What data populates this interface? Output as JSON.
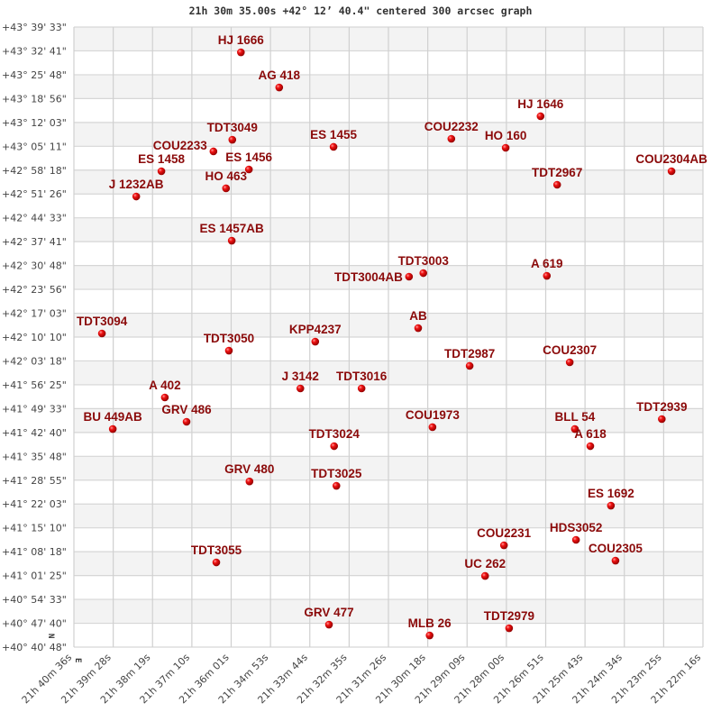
{
  "chart_data": {
    "type": "scatter",
    "title": "21h 30m 35.00s +42° 12’ 40.4\" centered 300 arcsec graph",
    "grid": true,
    "compass": {
      "north": "N",
      "east": "E"
    },
    "xlim": [
      "21h 40m 36s",
      "21h 22m 16s"
    ],
    "ylim": [
      "+40° 40' 48\"",
      "+43° 39' 33\""
    ],
    "x_ticks": [
      "21h 40m 36s",
      "21h 39m 28s",
      "21h 38m 19s",
      "21h 37m 10s",
      "21h 36m 01s",
      "21h 34m 53s",
      "21h 33m 44s",
      "21h 32m 35s",
      "21h 31m 26s",
      "21h 30m 18s",
      "21h 29m 09s",
      "21h 28m 00s",
      "21h 26m 51s",
      "21h 25m 43s",
      "21h 24m 34s",
      "21h 23m 25s",
      "21h 22m 16s"
    ],
    "y_ticks": [
      "+43° 39' 33\"",
      "+43° 32' 41\"",
      "+43° 25' 48\"",
      "+43° 18' 56\"",
      "+43° 12' 03\"",
      "+43° 05' 11\"",
      "+42° 58' 18\"",
      "+42° 51' 26\"",
      "+42° 44' 33\"",
      "+42° 37' 41\"",
      "+42° 30' 48\"",
      "+42° 23' 56\"",
      "+42° 17' 03\"",
      "+42° 10' 10\"",
      "+42° 03' 18\"",
      "+41° 56' 25\"",
      "+41° 49' 33\"",
      "+41° 42' 40\"",
      "+41° 35' 48\"",
      "+41° 28' 55\"",
      "+41° 22' 03\"",
      "+41° 15' 10\"",
      "+41° 08' 18\"",
      "+41° 01' 25\"",
      "+40° 54' 33\"",
      "+40° 47' 40\"",
      "+40° 40' 48\""
    ],
    "marker_color": "#dd0000",
    "label_color": "#8b0a0a",
    "points": [
      {
        "label": "HJ 1666",
        "ra": "21h 35m 44s",
        "dec": "+43° 32' 16\""
      },
      {
        "label": "AG  418",
        "ra": "21h 34m 37s",
        "dec": "+43° 22' 08\""
      },
      {
        "label": "TDT3049",
        "ra": "21h 35m 59s",
        "dec": "+43° 07' 04\""
      },
      {
        "label": "COU2233",
        "ra": "21h 36m 32s",
        "dec": "+43° 03' 42\""
      },
      {
        "label": "ES 1456",
        "ra": "21h 35m 30s",
        "dec": "+42° 58' 30\""
      },
      {
        "label": "ES 1458",
        "ra": "21h 38m 03s",
        "dec": "+42° 57' 59\""
      },
      {
        "label": "HO  463",
        "ra": "21h 36m 10s",
        "dec": "+42° 53' 03\""
      },
      {
        "label": "J  1232AB",
        "ra": "21h 38m 47s",
        "dec": "+42° 50' 42\""
      },
      {
        "label": "ES 1455",
        "ra": "21h 33m 02s",
        "dec": "+43° 05' 00\""
      },
      {
        "label": "COU2232",
        "ra": "21h 29m 36s",
        "dec": "+43° 07' 20\""
      },
      {
        "label": "HJ 1646",
        "ra": "21h 27m 00s",
        "dec": "+43° 13' 50\""
      },
      {
        "label": "HO  160",
        "ra": "21h 28m 01s",
        "dec": "+43° 04' 44\""
      },
      {
        "label": "TDT2967",
        "ra": "21h 26m 31s",
        "dec": "+42° 54' 05\""
      },
      {
        "label": "COU2304AB",
        "ra": "21h 23m 11s",
        "dec": "+42° 57' 59\""
      },
      {
        "label": "ES 1457AB",
        "ra": "21h 36m 00s",
        "dec": "+42° 37' 58\""
      },
      {
        "label": "TDT3004AB",
        "ra": "21h 30m 50s",
        "dec": "+42° 27' 35\""
      },
      {
        "label": "TDT3003",
        "ra": "21h 30m 25s",
        "dec": "+42° 28' 37\""
      },
      {
        "label": "A   619",
        "ra": "21h 26m 49s",
        "dec": "+42° 27' 50\""
      },
      {
        "label": "TDT3094",
        "ra": "21h 39m 47s",
        "dec": "+42° 11' 13\""
      },
      {
        "label": "AB",
        "ra": "21h 30m 34s",
        "dec": "+42° 12' 46\""
      },
      {
        "label": "TDT3050",
        "ra": "21h 36m 05s",
        "dec": "+42° 06' 16\""
      },
      {
        "label": "KPP4237",
        "ra": "21h 33m 34s",
        "dec": "+42° 08' 52\""
      },
      {
        "label": "TDT2987",
        "ra": "21h 29m 04s",
        "dec": "+42° 01' 52\""
      },
      {
        "label": "COU2307",
        "ra": "21h 26m 09s",
        "dec": "+42° 02' 54\""
      },
      {
        "label": "J  3142",
        "ra": "21h 34m 00s",
        "dec": "+41° 55' 22\""
      },
      {
        "label": "TDT3016",
        "ra": "21h 32m 13s",
        "dec": "+41° 55' 22\""
      },
      {
        "label": "A   402",
        "ra": "21h 37m 57s",
        "dec": "+41° 52' 46\""
      },
      {
        "label": "GRV 486",
        "ra": "21h 37m 19s",
        "dec": "+41° 45' 45\""
      },
      {
        "label": "BU  449AB",
        "ra": "21h 39m 28s",
        "dec": "+41° 43' 40\""
      },
      {
        "label": "COU1973",
        "ra": "21h 30m 09s",
        "dec": "+41° 44' 12\""
      },
      {
        "label": "BLL  54",
        "ra": "21h 26m 00s",
        "dec": "+41° 43' 40\""
      },
      {
        "label": "A   618",
        "ra": "21h 25m 33s",
        "dec": "+41° 38' 44\""
      },
      {
        "label": "TDT2939",
        "ra": "21h 23m 28s",
        "dec": "+41° 46' 32\""
      },
      {
        "label": "TDT3024",
        "ra": "21h 33m 01s",
        "dec": "+41° 38' 44\""
      },
      {
        "label": "GRV 480",
        "ra": "21h 35m 29s",
        "dec": "+41° 28' 34\""
      },
      {
        "label": "TDT3025",
        "ra": "21h 32m 57s",
        "dec": "+41° 27' 18\""
      },
      {
        "label": "ES 1692",
        "ra": "21h 24m 57s",
        "dec": "+41° 21' 35\""
      },
      {
        "label": "HDS3052",
        "ra": "21h 25m 58s",
        "dec": "+41° 11' 43\""
      },
      {
        "label": "COU2231",
        "ra": "21h 28m 04s",
        "dec": "+41° 10' 09\""
      },
      {
        "label": "COU2305",
        "ra": "21h 24m 49s",
        "dec": "+41° 05' 44\""
      },
      {
        "label": "UC  262",
        "ra": "21h 28m 37s",
        "dec": "+41° 01' 18\""
      },
      {
        "label": "TDT3055",
        "ra": "21h 36m 27s",
        "dec": "+41° 05' 13\""
      },
      {
        "label": "GRV 477",
        "ra": "21h 33m 10s",
        "dec": "+40° 47' 17\""
      },
      {
        "label": "MLB  26",
        "ra": "21h 30m 14s",
        "dec": "+40° 44' 10\""
      },
      {
        "label": "TDT2979",
        "ra": "21h 27m 55s",
        "dec": "+40° 46' 15\""
      }
    ]
  }
}
